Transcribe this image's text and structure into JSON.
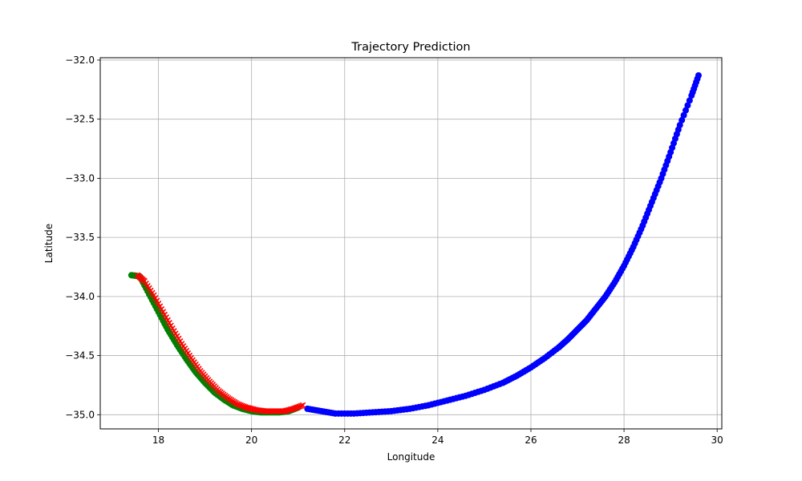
{
  "chart_data": {
    "type": "scatter",
    "title": "Trajectory Prediction",
    "xlabel": "Longitude",
    "ylabel": "Latitude",
    "xlim": [
      16.75,
      30.1
    ],
    "ylim": [
      -35.12,
      -31.98
    ],
    "xticks": [
      18,
      20,
      22,
      24,
      26,
      28,
      30
    ],
    "yticks": [
      -32.0,
      -32.5,
      -33.0,
      -33.5,
      -34.0,
      -34.5,
      -35.0
    ],
    "xtick_labels": [
      "18",
      "20",
      "22",
      "24",
      "26",
      "28",
      "30"
    ],
    "ytick_labels": [
      "−32.0",
      "−32.5",
      "−33.0",
      "−33.5",
      "−34.0",
      "−34.5",
      "−35.0"
    ],
    "grid": true,
    "series": [
      {
        "color": "#0000ff",
        "marker": "circle",
        "points": [
          [
            29.6,
            -32.13
          ],
          [
            29.45,
            -32.3
          ],
          [
            29.2,
            -32.55
          ],
          [
            29.0,
            -32.78
          ],
          [
            28.8,
            -33.0
          ],
          [
            28.6,
            -33.2
          ],
          [
            28.4,
            -33.4
          ],
          [
            28.2,
            -33.58
          ],
          [
            28.0,
            -33.74
          ],
          [
            27.8,
            -33.88
          ],
          [
            27.6,
            -34.0
          ],
          [
            27.4,
            -34.1
          ],
          [
            27.2,
            -34.2
          ],
          [
            27.0,
            -34.28
          ],
          [
            26.8,
            -34.36
          ],
          [
            26.6,
            -34.43
          ],
          [
            26.3,
            -34.52
          ],
          [
            26.0,
            -34.6
          ],
          [
            25.7,
            -34.67
          ],
          [
            25.4,
            -34.73
          ],
          [
            25.0,
            -34.79
          ],
          [
            24.6,
            -34.84
          ],
          [
            24.2,
            -34.88
          ],
          [
            23.8,
            -34.92
          ],
          [
            23.4,
            -34.95
          ],
          [
            23.0,
            -34.97
          ],
          [
            22.6,
            -34.98
          ],
          [
            22.2,
            -34.99
          ],
          [
            21.8,
            -34.99
          ],
          [
            21.5,
            -34.97
          ],
          [
            21.2,
            -34.95
          ]
        ]
      },
      {
        "color": "#008000",
        "marker": "circle",
        "points": [
          [
            21.0,
            -34.94
          ],
          [
            20.8,
            -34.97
          ],
          [
            20.6,
            -34.98
          ],
          [
            20.4,
            -34.98
          ],
          [
            20.2,
            -34.98
          ],
          [
            20.0,
            -34.97
          ],
          [
            19.8,
            -34.95
          ],
          [
            19.6,
            -34.92
          ],
          [
            19.4,
            -34.87
          ],
          [
            19.2,
            -34.81
          ],
          [
            19.0,
            -34.73
          ],
          [
            18.8,
            -34.64
          ],
          [
            18.6,
            -34.53
          ],
          [
            18.4,
            -34.41
          ],
          [
            18.2,
            -34.28
          ],
          [
            18.0,
            -34.13
          ],
          [
            17.8,
            -33.98
          ],
          [
            17.6,
            -33.83
          ],
          [
            17.42,
            -33.82
          ]
        ]
      },
      {
        "color": "#ff0000",
        "marker": "x",
        "points": [
          [
            21.1,
            -34.92
          ],
          [
            20.9,
            -34.95
          ],
          [
            20.7,
            -34.97
          ],
          [
            20.5,
            -34.97
          ],
          [
            20.3,
            -34.97
          ],
          [
            20.1,
            -34.96
          ],
          [
            19.9,
            -34.94
          ],
          [
            19.7,
            -34.91
          ],
          [
            19.5,
            -34.86
          ],
          [
            19.3,
            -34.8
          ],
          [
            19.1,
            -34.72
          ],
          [
            18.9,
            -34.63
          ],
          [
            18.7,
            -34.52
          ],
          [
            18.5,
            -34.4
          ],
          [
            18.3,
            -34.27
          ],
          [
            18.1,
            -34.13
          ],
          [
            17.9,
            -33.99
          ],
          [
            17.7,
            -33.87
          ],
          [
            17.55,
            -33.82
          ]
        ]
      }
    ]
  }
}
